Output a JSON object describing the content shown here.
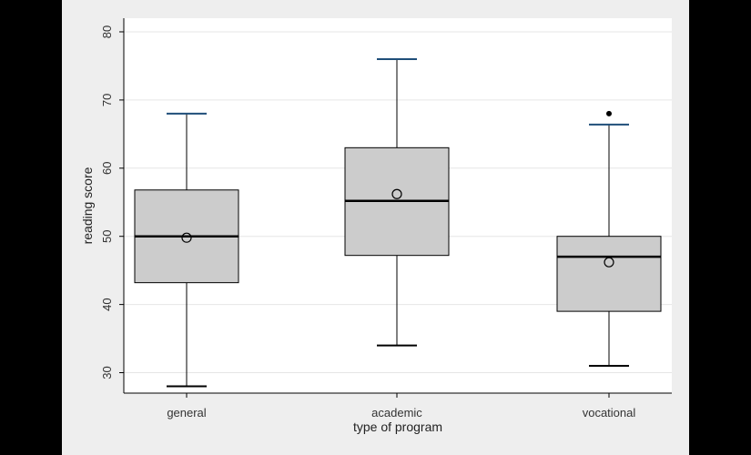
{
  "chart_data": {
    "type": "boxplot",
    "title": "",
    "xlabel": "type of program",
    "ylabel": "reading score",
    "ylim": [
      27,
      82
    ],
    "yticks": [
      30,
      40,
      50,
      60,
      70,
      80
    ],
    "grid": true,
    "categories": [
      "general",
      "academic",
      "vocational"
    ],
    "boxes": [
      {
        "category": "general",
        "min": 28,
        "q1": 43.2,
        "median": 50,
        "q3": 56.8,
        "max": 68,
        "mean": 49.8,
        "outliers": []
      },
      {
        "category": "academic",
        "min": 34,
        "q1": 47.2,
        "median": 55.2,
        "q3": 63,
        "max": 76,
        "mean": 56.2,
        "outliers": []
      },
      {
        "category": "vocational",
        "min": 31,
        "q1": 39,
        "median": 47,
        "q3": 50,
        "max": 66.4,
        "mean": 46.2,
        "outliers": [
          68
        ]
      }
    ],
    "colors": {
      "box_fill": "#cccccc",
      "box_stroke": "#000000",
      "cap": "#1f4e79",
      "grid": "#e6e6e6",
      "plot_bg": "#ffffff",
      "frame_bg": "#eeeeee"
    }
  }
}
